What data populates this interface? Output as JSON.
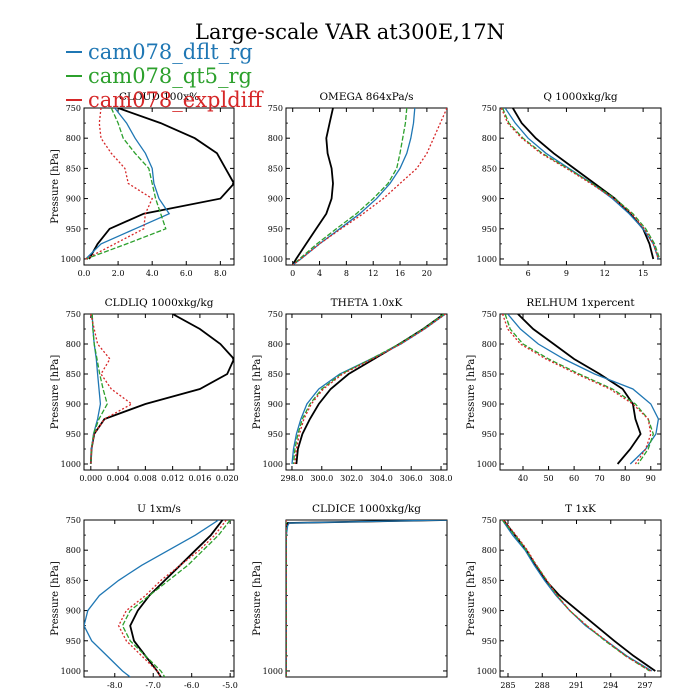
{
  "page_title": "Large-scale VAR at300E,17N",
  "legend": [
    {
      "name": "cam078_dflt_rg",
      "color": "#1f77b4"
    },
    {
      "name": "cam078_qt5_rg",
      "color": "#2ca02c"
    },
    {
      "name": "cam078_expldiff",
      "color": "#d62728"
    }
  ],
  "colors": {
    "control": "#000000",
    "dflt": "#1f77b4",
    "qt5": "#2ca02c",
    "expl": "#d62728"
  },
  "chart_data": [
    {
      "type": "line",
      "title": "CLOUD 100x%",
      "xlabel": "",
      "ylabel": "Pressure [hPa]",
      "xlim": [
        0,
        8.8
      ],
      "ylim": [
        1010,
        750
      ],
      "xticks": [
        0,
        2,
        4,
        6,
        8
      ],
      "xticklabels": [
        "0.0",
        "2.0",
        "4.0",
        "6.0",
        "8.0"
      ],
      "yticks": [
        750,
        800,
        850,
        900,
        950,
        1000
      ],
      "y": [
        750,
        775,
        800,
        825,
        850,
        875,
        900,
        925,
        950,
        975,
        1000
      ],
      "series": [
        {
          "values": [
            2.0,
            4.5,
            6.5,
            7.8,
            8.3,
            8.8,
            8.0,
            3.5,
            1.5,
            0.8,
            0.3
          ],
          "color": "#000000"
        },
        {
          "values": [
            1.8,
            2.5,
            3.0,
            3.6,
            4.0,
            4.1,
            4.4,
            5.0,
            3.0,
            1.0,
            0.1
          ],
          "color": "#1f77b4"
        },
        {
          "values": [
            1.6,
            2.0,
            2.3,
            3.0,
            3.8,
            4.0,
            4.2,
            4.5,
            4.8,
            2.5,
            0.1
          ],
          "color": "#2ca02c"
        },
        {
          "values": [
            1.0,
            0.9,
            1.0,
            1.6,
            2.4,
            2.6,
            4.0,
            3.6,
            3.5,
            1.8,
            0.1
          ],
          "color": "#d62728"
        }
      ]
    },
    {
      "type": "line",
      "title": "OMEGA 864xPa/s",
      "xlabel": "",
      "ylabel": "",
      "xlim": [
        -1,
        23
      ],
      "ylim": [
        1010,
        750
      ],
      "xticks": [
        0,
        4,
        8,
        12,
        16,
        20
      ],
      "xticklabels": [
        "0",
        "4",
        "8",
        "12",
        "16",
        "20"
      ],
      "yticks": [
        750,
        800,
        850,
        900,
        950,
        1000
      ],
      "y": [
        750,
        775,
        800,
        825,
        850,
        875,
        900,
        925,
        950,
        975,
        1000,
        1010
      ],
      "series": [
        {
          "values": [
            6.0,
            5.5,
            5.0,
            5.2,
            5.8,
            6.0,
            5.8,
            5.0,
            3.5,
            2.0,
            0.5,
            0.0
          ],
          "color": "#000000"
        },
        {
          "values": [
            18.2,
            18.0,
            17.6,
            17.0,
            16.0,
            14.5,
            12.5,
            10.0,
            7.0,
            4.0,
            1.2,
            0.0
          ],
          "color": "#1f77b4"
        },
        {
          "values": [
            17.0,
            16.8,
            16.4,
            16.0,
            15.5,
            14.2,
            12.0,
            9.5,
            6.5,
            3.6,
            1.0,
            0.0
          ],
          "color": "#2ca02c"
        },
        {
          "values": [
            23.0,
            22.0,
            21.0,
            20.0,
            18.5,
            16.0,
            13.5,
            10.5,
            7.2,
            4.0,
            1.2,
            0.0
          ],
          "color": "#d62728"
        }
      ]
    },
    {
      "type": "line",
      "title": "Q 1000xkg/kg",
      "xlabel": "",
      "ylabel": "",
      "xlim": [
        3.8,
        16.4
      ],
      "ylim": [
        1010,
        750
      ],
      "xticks": [
        6,
        9,
        12,
        15
      ],
      "xticklabels": [
        "6",
        "9",
        "12",
        "15"
      ],
      "yticks": [
        750,
        800,
        850,
        900,
        950,
        1000
      ],
      "y": [
        750,
        775,
        800,
        825,
        850,
        875,
        900,
        925,
        950,
        975,
        1000
      ],
      "series": [
        {
          "values": [
            4.8,
            5.5,
            6.6,
            8.0,
            9.6,
            11.2,
            12.8,
            14.0,
            15.0,
            15.5,
            15.8
          ],
          "color": "#000000"
        },
        {
          "values": [
            4.2,
            5.0,
            6.0,
            7.4,
            9.2,
            11.0,
            12.6,
            13.9,
            15.0,
            15.8,
            16.2
          ],
          "color": "#1f77b4"
        },
        {
          "values": [
            4.0,
            4.5,
            5.6,
            7.1,
            9.1,
            11.0,
            12.8,
            14.2,
            15.2,
            15.9,
            16.3
          ],
          "color": "#2ca02c"
        },
        {
          "values": [
            3.9,
            4.4,
            5.5,
            7.0,
            9.0,
            10.9,
            12.7,
            14.1,
            15.1,
            15.8,
            16.2
          ],
          "color": "#d62728"
        }
      ]
    },
    {
      "type": "line",
      "title": "CLDLIQ 1000xkg/kg",
      "xlabel": "",
      "ylabel": "Pressure [hPa]",
      "xlim": [
        -0.001,
        0.021
      ],
      "ylim": [
        1010,
        750
      ],
      "xticks": [
        0,
        0.004,
        0.008,
        0.012,
        0.016,
        0.02
      ],
      "xticklabels": [
        "0.000",
        "0.004",
        "0.008",
        "0.012",
        "0.016",
        "0.020"
      ],
      "yticks": [
        750,
        800,
        850,
        900,
        950,
        1000
      ],
      "y": [
        750,
        775,
        800,
        825,
        850,
        875,
        900,
        925,
        950,
        975,
        1000
      ],
      "series": [
        {
          "values": [
            0.012,
            0.016,
            0.019,
            0.021,
            0.02,
            0.016,
            0.008,
            0.002,
            0.0005,
            0.0001,
            0.0
          ],
          "color": "#000000"
        },
        {
          "values": [
            0.0002,
            0.0003,
            0.0005,
            0.0008,
            0.001,
            0.0012,
            0.0014,
            0.001,
            0.0004,
            0.0001,
            0.0
          ],
          "color": "#1f77b4"
        },
        {
          "values": [
            0.0002,
            0.0003,
            0.0005,
            0.0009,
            0.0013,
            0.0018,
            0.0024,
            0.0012,
            0.0004,
            0.0001,
            0.0
          ],
          "color": "#2ca02c"
        },
        {
          "values": [
            0.0,
            0.0005,
            0.001,
            0.0028,
            0.0015,
            0.003,
            0.006,
            0.002,
            0.0005,
            0.0001,
            0.0
          ],
          "color": "#d62728"
        }
      ]
    },
    {
      "type": "line",
      "title": "THETA 1.0xK",
      "xlabel": "",
      "ylabel": "Pressure [hPa]",
      "xlim": [
        297.6,
        308.4
      ],
      "ylim": [
        1010,
        750
      ],
      "xticks": [
        298,
        300,
        302,
        304,
        306,
        308
      ],
      "xticklabels": [
        "298.0",
        "300.0",
        "302.0",
        "304.0",
        "306.0",
        "308.0"
      ],
      "yticks": [
        750,
        800,
        850,
        900,
        950,
        1000
      ],
      "y": [
        750,
        775,
        800,
        825,
        850,
        875,
        900,
        925,
        950,
        975,
        1000
      ],
      "series": [
        {
          "values": [
            308.2,
            306.8,
            305.2,
            303.5,
            301.8,
            300.6,
            299.8,
            299.2,
            298.7,
            298.4,
            298.3
          ],
          "color": "#000000"
        },
        {
          "values": [
            308.3,
            306.9,
            305.3,
            303.3,
            301.2,
            299.8,
            299.0,
            298.6,
            298.3,
            298.1,
            298.0
          ],
          "color": "#1f77b4"
        },
        {
          "values": [
            308.2,
            306.8,
            305.2,
            303.3,
            301.3,
            300.0,
            299.2,
            298.7,
            298.4,
            298.2,
            298.1
          ],
          "color": "#2ca02c"
        },
        {
          "values": [
            308.3,
            306.9,
            305.3,
            303.4,
            301.4,
            300.1,
            299.3,
            298.8,
            298.5,
            298.3,
            298.2
          ],
          "color": "#d62728"
        }
      ]
    },
    {
      "type": "line",
      "title": "RELHUM 1xpercent",
      "xlabel": "",
      "ylabel": "Pressure [hPa]",
      "xlim": [
        31,
        94
      ],
      "ylim": [
        1010,
        750
      ],
      "xticks": [
        40,
        50,
        60,
        70,
        80,
        90
      ],
      "xticklabels": [
        "40",
        "50",
        "60",
        "70",
        "80",
        "90"
      ],
      "yticks": [
        750,
        800,
        850,
        900,
        950,
        1000
      ],
      "y": [
        750,
        775,
        800,
        825,
        850,
        875,
        900,
        925,
        950,
        975,
        1000
      ],
      "series": [
        {
          "values": [
            38,
            44,
            52,
            60,
            70,
            79,
            83,
            84,
            86,
            82,
            77
          ],
          "color": "#000000"
        },
        {
          "values": [
            34,
            39,
            46,
            56,
            68,
            83,
            90,
            93,
            92,
            88,
            82
          ],
          "color": "#1f77b4"
        },
        {
          "values": [
            33,
            35,
            40,
            50,
            62,
            75,
            84,
            89,
            91,
            89,
            85
          ],
          "color": "#2ca02c"
        },
        {
          "values": [
            32,
            34,
            39,
            49,
            61,
            74,
            83,
            89,
            90,
            88,
            84
          ],
          "color": "#d62728"
        }
      ]
    },
    {
      "type": "line",
      "title": "U 1xm/s",
      "xlabel": "",
      "ylabel": "Pressure [hPa]",
      "xlim": [
        -8.8,
        -4.9
      ],
      "ylim": [
        1010,
        750
      ],
      "xticks": [
        -8,
        -7,
        -6,
        -5
      ],
      "xticklabels": [
        "-8.0",
        "-7.0",
        "-6.0",
        "-5.0"
      ],
      "yticks": [
        750,
        800,
        850,
        900,
        950,
        1000
      ],
      "y": [
        750,
        775,
        800,
        825,
        850,
        875,
        900,
        925,
        950,
        975,
        1000,
        1010
      ],
      "series": [
        {
          "values": [
            -5.2,
            -5.5,
            -5.9,
            -6.3,
            -6.7,
            -7.1,
            -7.4,
            -7.6,
            -7.5,
            -7.2,
            -6.9,
            -6.8
          ],
          "color": "#000000"
        },
        {
          "values": [
            -5.3,
            -5.9,
            -6.6,
            -7.3,
            -7.9,
            -8.4,
            -8.7,
            -8.8,
            -8.6,
            -8.2,
            -7.8,
            -7.6
          ],
          "color": "#1f77b4"
        },
        {
          "values": [
            -5.0,
            -5.3,
            -5.7,
            -6.1,
            -6.6,
            -7.1,
            -7.6,
            -7.8,
            -7.6,
            -7.2,
            -6.8,
            -6.7
          ],
          "color": "#2ca02c"
        },
        {
          "values": [
            -5.1,
            -5.4,
            -5.8,
            -6.3,
            -6.8,
            -7.2,
            -7.7,
            -7.9,
            -7.7,
            -7.3,
            -6.9,
            -6.8
          ],
          "color": "#d62728"
        }
      ]
    },
    {
      "type": "line",
      "title": "CLDICE 1000xkg/kg",
      "xlabel": "",
      "ylabel": "Pressure [hPa]",
      "xlim": [
        0,
        1
      ],
      "ylim": [
        1010,
        750
      ],
      "xticks": [],
      "xticklabels": [],
      "yticks": [
        1000
      ],
      "yticklabels": [
        "1000"
      ],
      "y": [
        750,
        755,
        760,
        780,
        800,
        820,
        1010
      ],
      "series": [
        {
          "values": [
            1.0,
            0.01,
            0.0,
            0.0,
            0.0,
            0.0,
            0.0
          ],
          "color": "#000000"
        },
        {
          "values": [
            1.0,
            0.02,
            0.01,
            0.0,
            0.0,
            0.0,
            0.0
          ],
          "color": "#1f77b4"
        },
        {
          "values": [
            0.0,
            0.0,
            0.0,
            0.0,
            0.0,
            0.0,
            0.0
          ],
          "color": "#2ca02c"
        },
        {
          "values": [
            0.0,
            0.0,
            0.0,
            0.0,
            0.0,
            0.0,
            0.0
          ],
          "color": "#d62728"
        }
      ]
    },
    {
      "type": "line",
      "title": "T 1xK",
      "xlabel": "",
      "ylabel": "Pressure [hPa]",
      "xlim": [
        284.3,
        298.4
      ],
      "ylim": [
        1010,
        750
      ],
      "xticks": [
        285,
        288,
        291,
        294,
        297
      ],
      "xticklabels": [
        "285",
        "288",
        "291",
        "294",
        "297"
      ],
      "yticks": [
        750,
        800,
        850,
        900,
        950,
        1000
      ],
      "y": [
        750,
        775,
        800,
        825,
        850,
        875,
        900,
        925,
        950,
        975,
        1000
      ],
      "series": [
        {
          "values": [
            284.6,
            285.6,
            286.6,
            287.4,
            288.3,
            289.5,
            291.1,
            292.7,
            294.3,
            296.0,
            297.9
          ],
          "color": "#000000"
        },
        {
          "values": [
            284.5,
            285.4,
            286.5,
            287.3,
            288.2,
            289.2,
            290.4,
            291.8,
            293.6,
            295.4,
            297.6
          ],
          "color": "#1f77b4"
        },
        {
          "values": [
            284.5,
            285.6,
            286.6,
            287.5,
            288.4,
            289.3,
            290.4,
            291.9,
            293.5,
            295.3,
            297.4
          ],
          "color": "#2ca02c"
        },
        {
          "values": [
            284.6,
            285.7,
            286.7,
            287.5,
            288.4,
            289.3,
            290.4,
            291.9,
            293.6,
            295.3,
            297.5
          ],
          "color": "#d62728"
        }
      ]
    }
  ]
}
